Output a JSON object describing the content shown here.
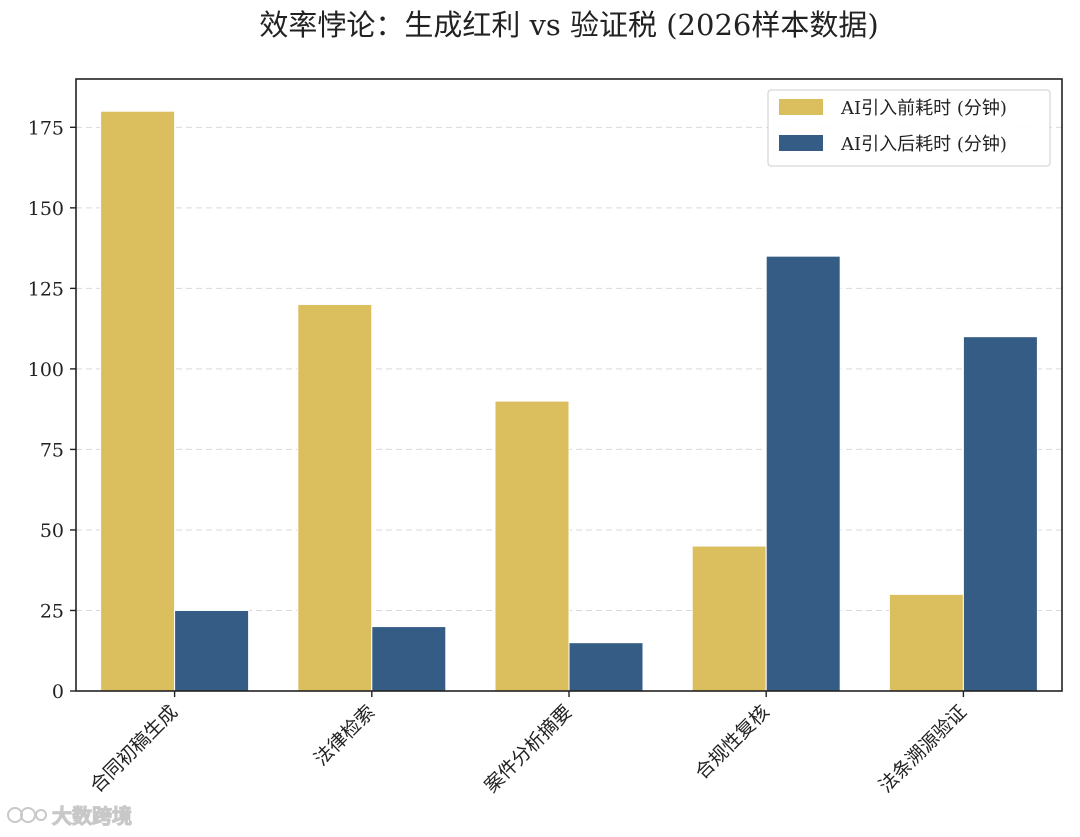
{
  "chart_data": {
    "type": "bar",
    "title": "效率悖论：生成红利 vs 验证税 (2026样本数据)",
    "xlabel": "",
    "ylabel": "",
    "categories": [
      "合同初稿生成",
      "法律检索",
      "案件分析摘要",
      "合规性复核",
      "法条溯源验证"
    ],
    "series": [
      {
        "name": "AI引入前耗时 (分钟)",
        "values": [
          180,
          120,
          90,
          45,
          30
        ],
        "color": "#dbbe5e"
      },
      {
        "name": "AI引入后耗时 (分钟)",
        "values": [
          25,
          20,
          15,
          135,
          110
        ],
        "color": "#355c85"
      }
    ],
    "ylim": [
      0,
      190
    ],
    "yticks": [
      0,
      25,
      50,
      75,
      100,
      125,
      150,
      175
    ],
    "grid": "horizontal dashed",
    "legend_position": "top-right"
  },
  "watermark": {
    "text": "大数跨境"
  }
}
